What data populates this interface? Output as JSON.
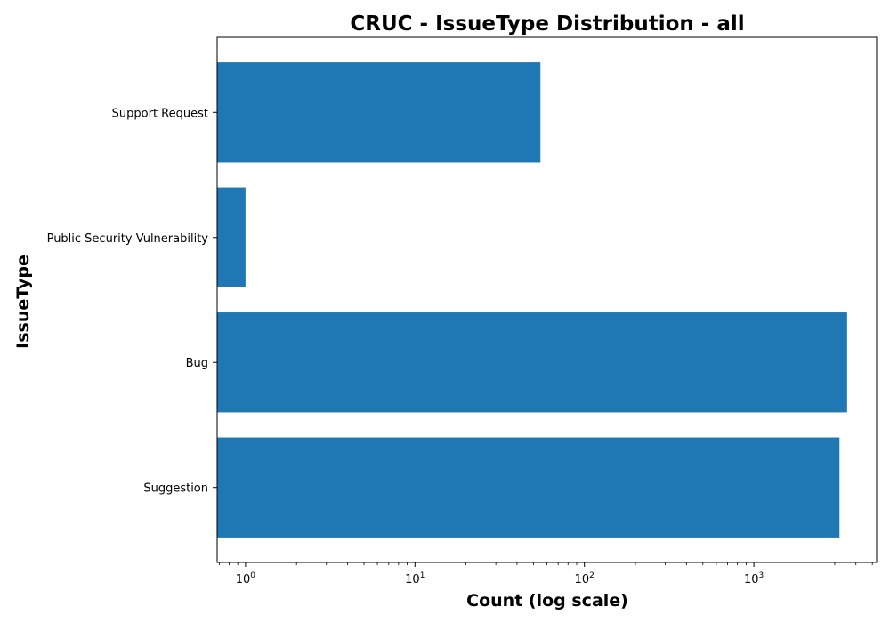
{
  "chart_data": {
    "type": "bar",
    "orientation": "horizontal",
    "title": "CRUC - IssueType Distribution - all",
    "xlabel": "Count (log scale)",
    "ylabel": "IssueType",
    "xscale": "log",
    "xlim": [
      0.68,
      5300
    ],
    "categories": [
      "Suggestion",
      "Bug",
      "Public Security Vulnerability",
      "Support Request"
    ],
    "values": [
      3200,
      3550,
      1,
      55
    ],
    "x_ticks": [
      {
        "value": 1,
        "base": "10",
        "exp": "0"
      },
      {
        "value": 10,
        "base": "10",
        "exp": "1"
      },
      {
        "value": 100,
        "base": "10",
        "exp": "2"
      },
      {
        "value": 1000,
        "base": "10",
        "exp": "3"
      }
    ],
    "grid": false,
    "colors": {
      "bar": "#1f77b4",
      "axes": "#000000",
      "background": "#ffffff"
    }
  }
}
